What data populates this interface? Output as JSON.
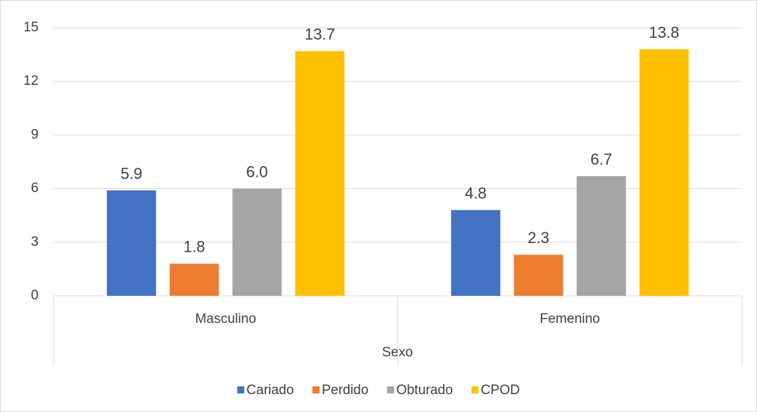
{
  "chart_data": {
    "type": "bar",
    "xlabel": "Sexo",
    "categories": [
      "Masculino",
      "Femenino"
    ],
    "series": [
      {
        "name": "Cariado",
        "color": "#4472c4",
        "values": [
          5.9,
          4.8
        ],
        "value_labels": [
          "5.9",
          "4.8"
        ]
      },
      {
        "name": "Perdido",
        "color": "#ed7d31",
        "values": [
          1.8,
          2.3
        ],
        "value_labels": [
          "1.8",
          "2.3"
        ]
      },
      {
        "name": "Obturado",
        "color": "#a5a5a5",
        "values": [
          6.0,
          6.7
        ],
        "value_labels": [
          "6.0",
          "6.7"
        ]
      },
      {
        "name": "CPOD",
        "color": "#ffc000",
        "values": [
          13.7,
          13.8
        ],
        "value_labels": [
          "13.7",
          "13.8"
        ]
      }
    ],
    "ylim": [
      0,
      15
    ],
    "yticks": [
      0,
      3,
      6,
      9,
      12,
      15
    ],
    "grid": true,
    "legend": "bottom"
  }
}
